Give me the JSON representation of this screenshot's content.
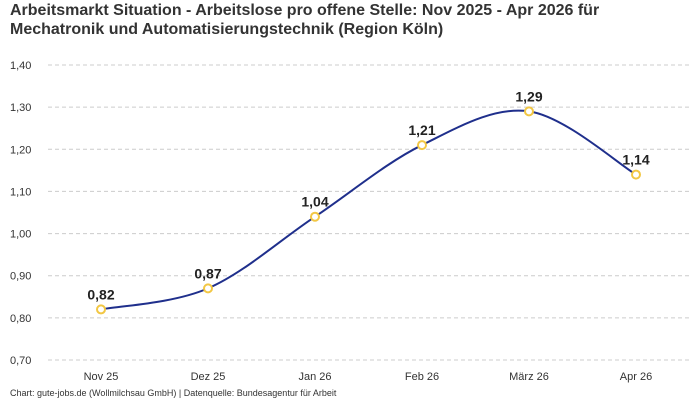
{
  "chart_data": {
    "type": "line",
    "title": "Arbeitsmarkt Situation - Arbeitslose pro offene Stelle: Nov 2025 - Apr 2026 für Mechatronik und Automatisierungstechnik (Region Köln)",
    "xlabel": "",
    "ylabel": "",
    "categories": [
      "Nov 25",
      "Dez 25",
      "Jan 26",
      "Feb 26",
      "März 26",
      "Apr 26"
    ],
    "series": [
      {
        "values": [
          0.82,
          0.87,
          1.04,
          1.21,
          1.29,
          1.14
        ],
        "data_labels": [
          "0,82",
          "0,87",
          "1,04",
          "1,21",
          "1,29",
          "1,14"
        ]
      }
    ],
    "ylim": [
      0.7,
      1.4
    ],
    "yticks": [
      0.7,
      0.8,
      0.9,
      1.0,
      1.1,
      1.2,
      1.3,
      1.4
    ],
    "ytick_labels": [
      "0,70",
      "0,80",
      "0,90",
      "1,00",
      "1,10",
      "1,20",
      "1,30",
      "1,40"
    ],
    "grid": "horizontal-dashed",
    "legend": "none",
    "line_color": "#1f2f8c",
    "marker_color": "#f2c744",
    "grid_color": "#cccccc"
  },
  "footer": {
    "source": "Chart: gute-jobs.de (Wollmilchsau GmbH) | Datenquelle: Bundesagentur für Arbeit"
  }
}
